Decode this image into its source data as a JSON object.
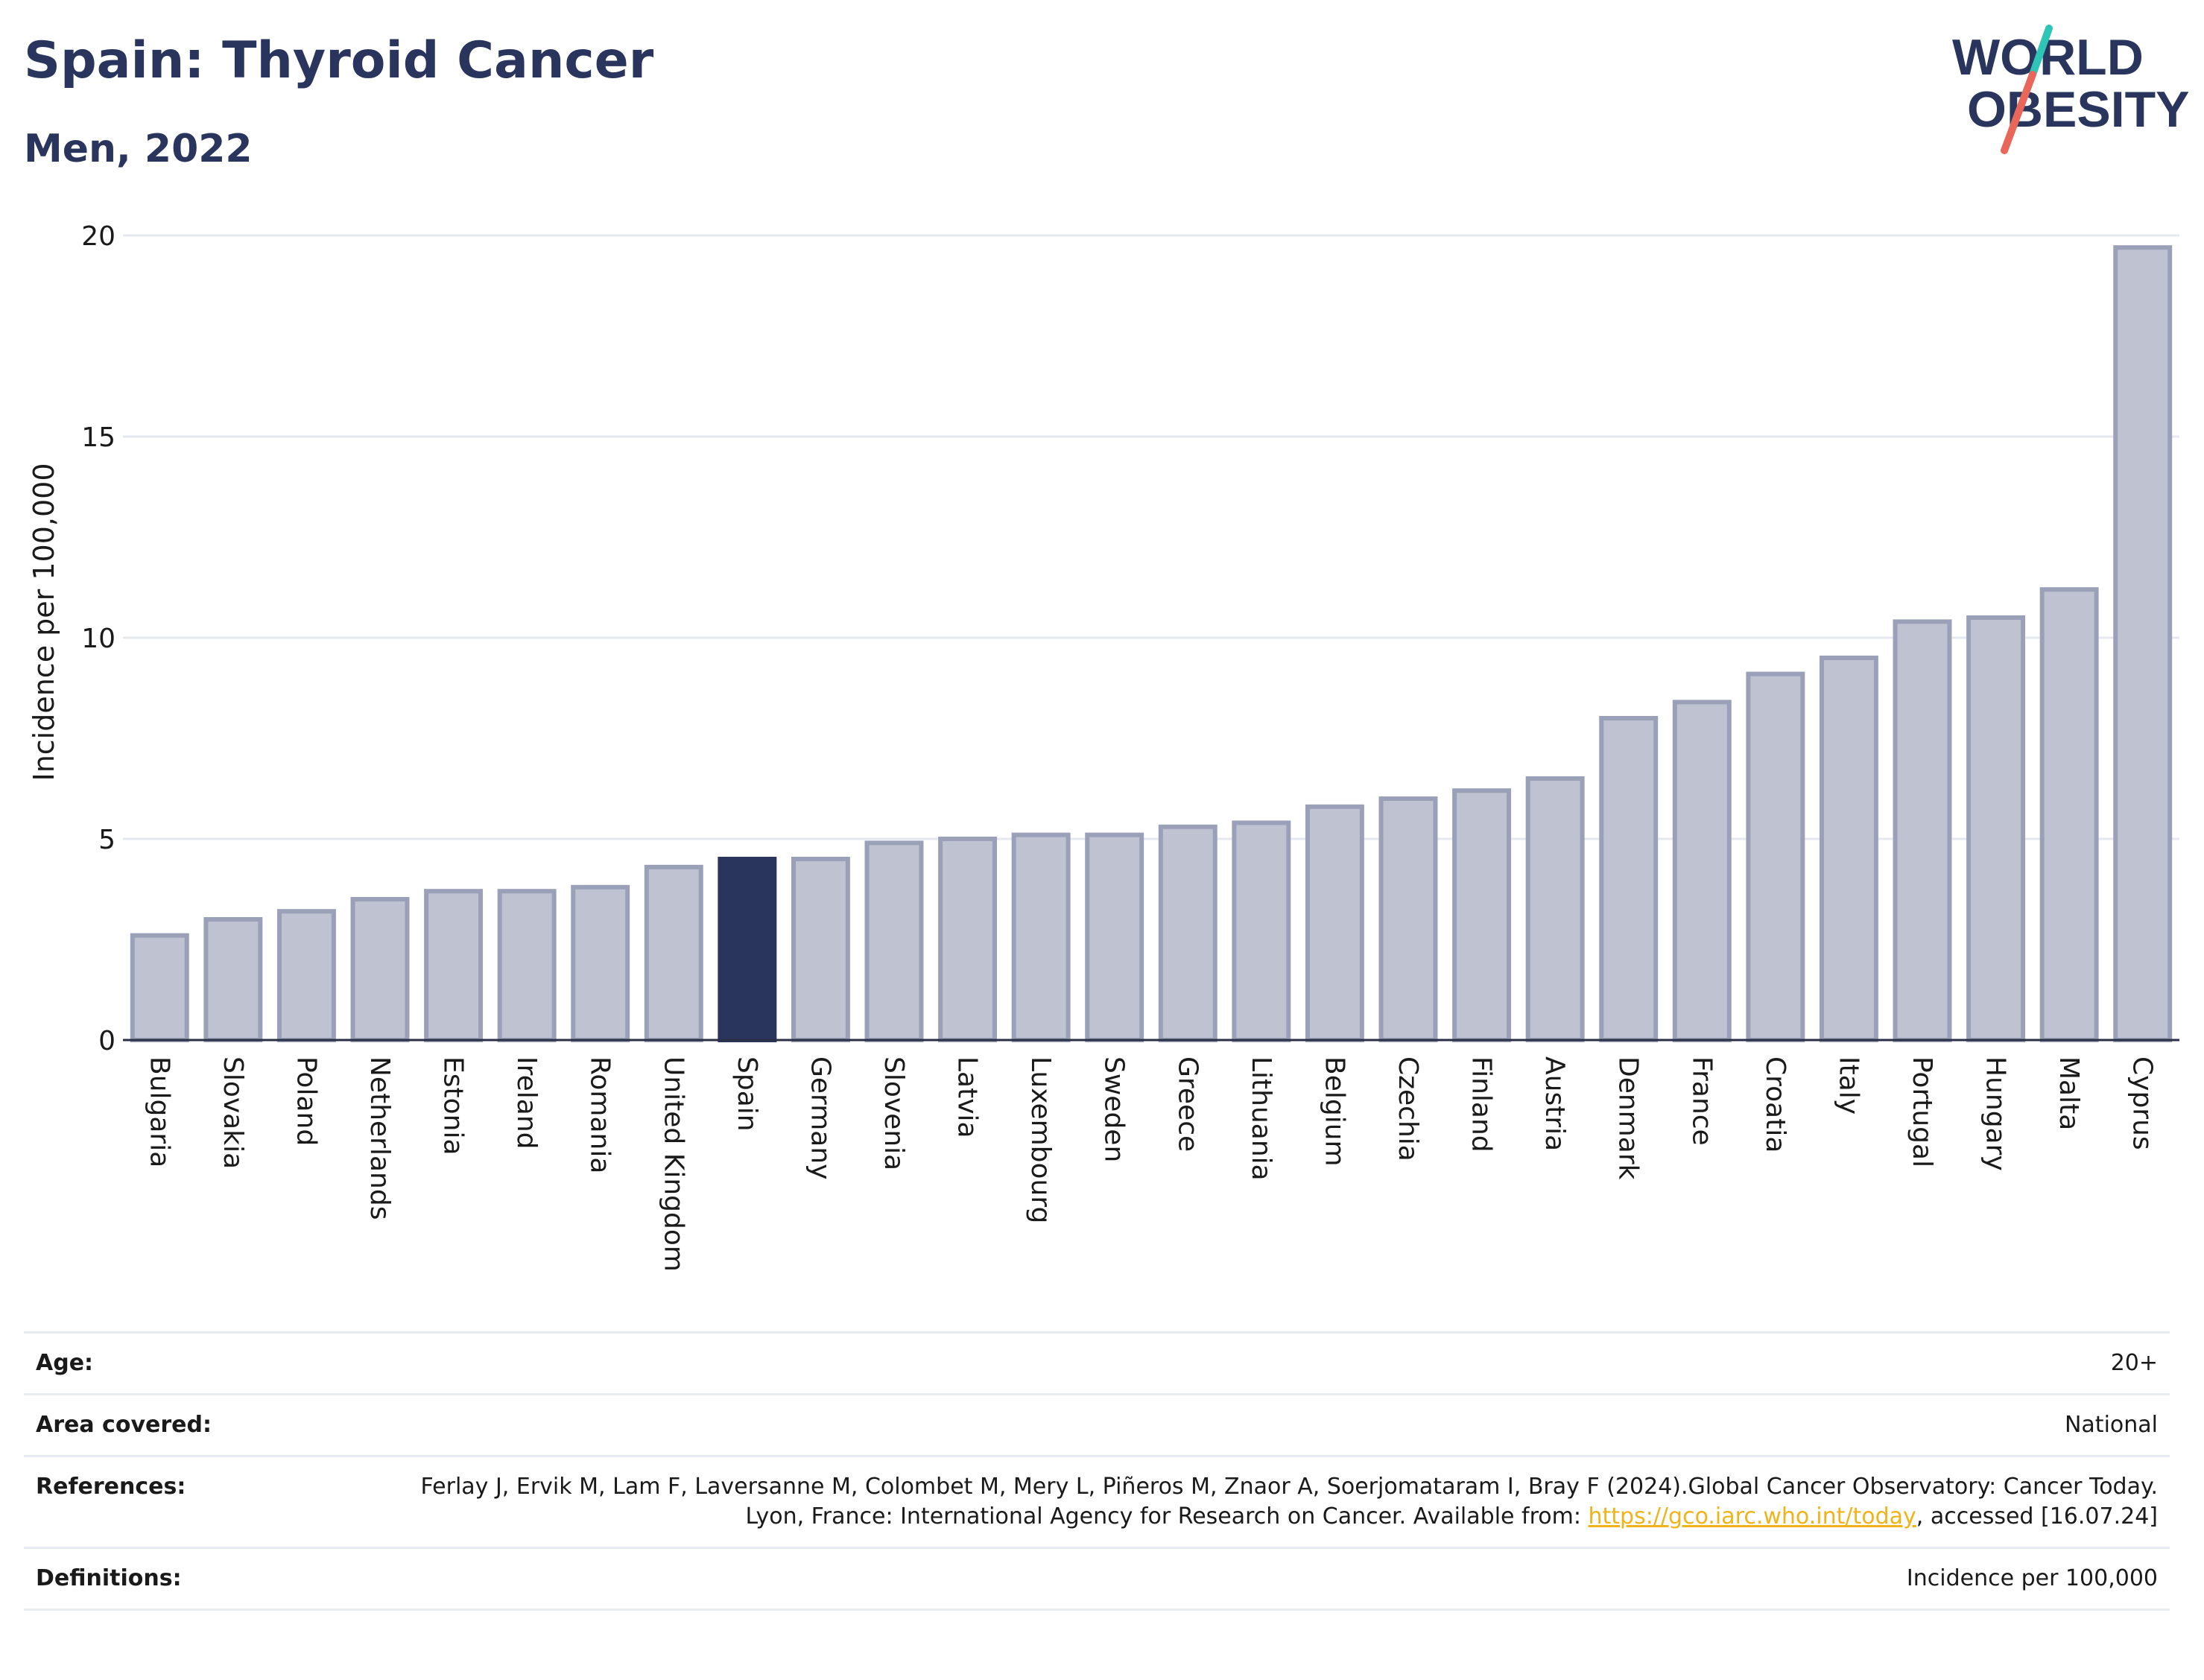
{
  "header": {
    "title": "Spain: Thyroid Cancer",
    "subtitle": "Men, 2022"
  },
  "logo": {
    "line1": "WORLD",
    "line2": "OBESITY",
    "accent_colors": [
      "#2ec4b6",
      "#e8675a"
    ],
    "text_color": "#2a355e"
  },
  "chart_data": {
    "type": "bar",
    "title": "Spain: Thyroid Cancer",
    "subtitle": "Men, 2022",
    "xlabel": "",
    "ylabel": "Incidence per 100,000",
    "ylim": [
      0,
      20
    ],
    "yticks": [
      0,
      5,
      10,
      15,
      20
    ],
    "grid": true,
    "highlight": "Spain",
    "colors": {
      "bar": "#bfc3d1",
      "bar_edge": "#9aa0b8",
      "highlight": "#2a355e",
      "grid": "#e6e8ef"
    },
    "categories": [
      "Bulgaria",
      "Slovakia",
      "Poland",
      "Netherlands",
      "Estonia",
      "Ireland",
      "Romania",
      "United Kingdom",
      "Spain",
      "Germany",
      "Slovenia",
      "Latvia",
      "Luxembourg",
      "Sweden",
      "Greece",
      "Lithuania",
      "Belgium",
      "Czechia",
      "Finland",
      "Austria",
      "Denmark",
      "France",
      "Croatia",
      "Italy",
      "Portugal",
      "Hungary",
      "Malta",
      "Cyprus"
    ],
    "values": [
      2.6,
      3.0,
      3.2,
      3.5,
      3.7,
      3.7,
      3.8,
      4.3,
      4.5,
      4.5,
      4.9,
      5.0,
      5.1,
      5.1,
      5.3,
      5.4,
      5.8,
      6.0,
      6.2,
      6.5,
      8.0,
      8.4,
      9.1,
      9.5,
      10.4,
      10.5,
      11.2,
      19.7
    ]
  },
  "meta": {
    "age_label": "Age:",
    "age_value": "20+",
    "area_label": "Area covered:",
    "area_value": "National",
    "references_label": "References:",
    "references_text": "Ferlay J, Ervik M, Lam F, Laversanne M, Colombet M, Mery L, Piñeros M, Znaor A, Soerjomataram I, Bray F (2024).Global Cancer Observatory: Cancer Today. Lyon, France: International Agency for Research on Cancer. Available from:",
    "references_link": "https://gco.iarc.who.int/today",
    "references_suffix": ", accessed [16.07.24]",
    "definitions_label": "Definitions:",
    "definitions_value": "Incidence per 100,000"
  }
}
